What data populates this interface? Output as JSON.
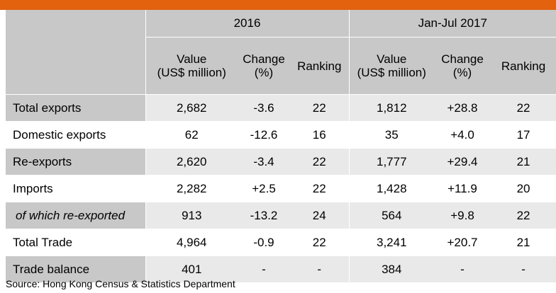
{
  "accent_color": "#e2620e",
  "table": {
    "periods": [
      "2016",
      "Jan-Jul 2017"
    ],
    "columns": [
      {
        "line1": "Value",
        "line2": "(US$ million)"
      },
      {
        "line1": "Change",
        "line2": "(%)"
      },
      {
        "line1": "Ranking",
        "line2": ""
      },
      {
        "line1": "Value",
        "line2": "(US$ million)"
      },
      {
        "line1": "Change",
        "line2": "(%)"
      },
      {
        "line1": "Ranking",
        "line2": ""
      }
    ],
    "rows": [
      {
        "label": "Total exports",
        "cells": [
          "2,682",
          "-3.6",
          "22",
          "1,812",
          "+28.8",
          "22"
        ]
      },
      {
        "label": "Domestic exports",
        "cells": [
          "62",
          "-12.6",
          "16",
          "35",
          "+4.0",
          "17"
        ]
      },
      {
        "label": "Re-exports",
        "cells": [
          "2,620",
          "-3.4",
          "22",
          "1,777",
          "+29.4",
          "21"
        ]
      },
      {
        "label": "Imports",
        "cells": [
          "2,282",
          "+2.5",
          "22",
          "1,428",
          "+11.9",
          "20"
        ]
      },
      {
        "label": "of which re-exported",
        "cells": [
          "913",
          "-13.2",
          "24",
          "564",
          "+9.8",
          "22"
        ]
      },
      {
        "label": "Total Trade",
        "cells": [
          "4,964",
          "-0.9",
          "22",
          "3,241",
          "+20.7",
          "21"
        ]
      },
      {
        "label": "Trade balance",
        "cells": [
          "401",
          "-",
          "-",
          "384",
          "-",
          "-"
        ]
      }
    ]
  },
  "source": "Source: Hong Kong Census & Statistics Department"
}
